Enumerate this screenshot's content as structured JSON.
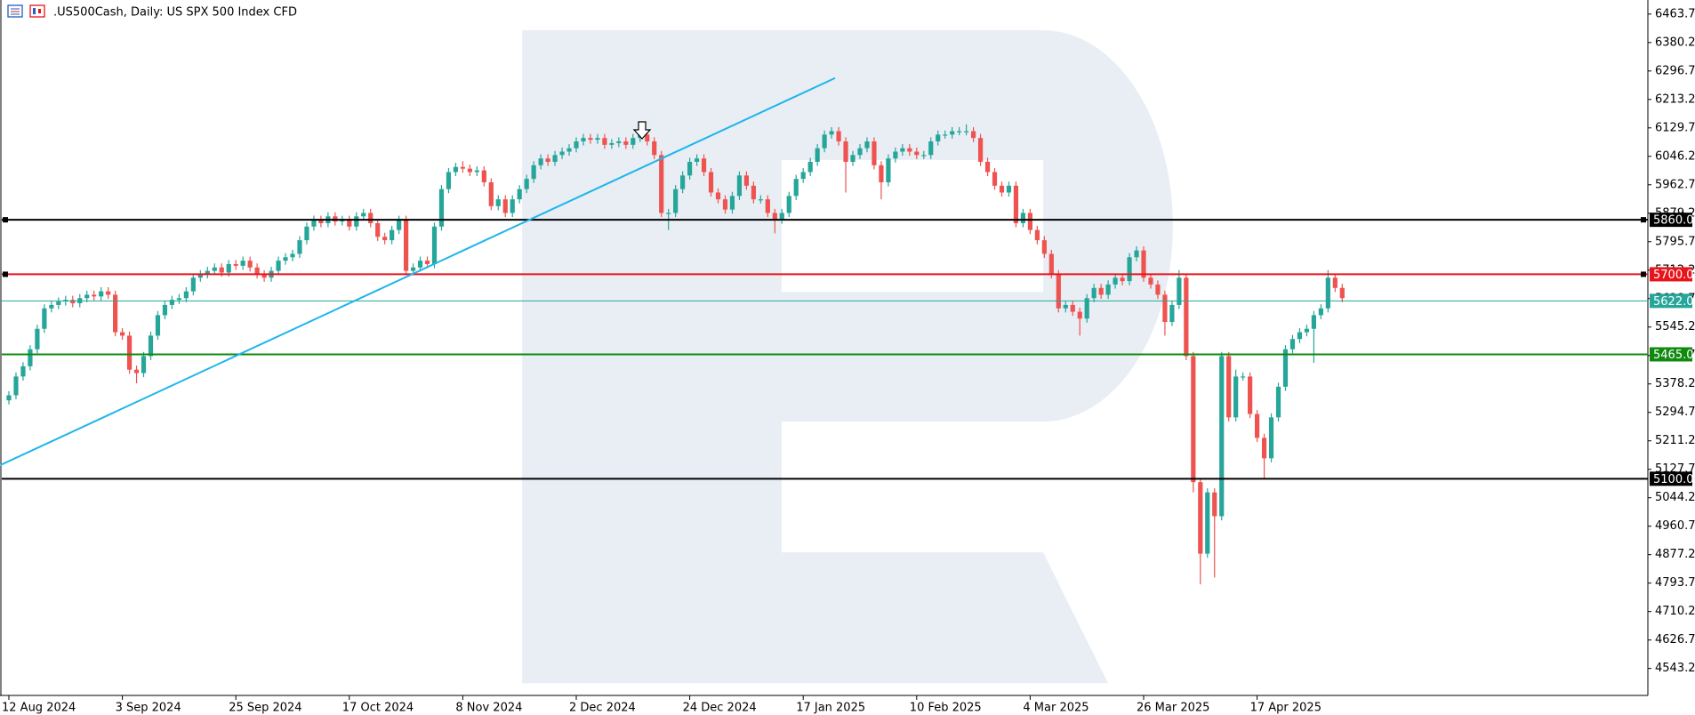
{
  "chart_data": {
    "type": "candlestick",
    "title": ".US500Cash, Daily:  US SPX 500 Index CFD",
    "up_color": "#26a69a",
    "down_color": "#ef5350",
    "categories": [
      "12 Aug 2024",
      null,
      null,
      null,
      null,
      null,
      null,
      null,
      null,
      null,
      null,
      null,
      null,
      null,
      null,
      null,
      "3 Sep 2024",
      null,
      null,
      null,
      null,
      null,
      null,
      null,
      null,
      null,
      null,
      null,
      null,
      null,
      null,
      null,
      "25 Sep 2024",
      null,
      null,
      null,
      null,
      null,
      null,
      null,
      null,
      null,
      null,
      null,
      null,
      null,
      null,
      null,
      "17 Oct 2024",
      null,
      null,
      null,
      null,
      null,
      null,
      null,
      null,
      null,
      null,
      null,
      null,
      null,
      null,
      null,
      "8 Nov 2024",
      null,
      null,
      null,
      null,
      null,
      null,
      null,
      null,
      null,
      null,
      null,
      null,
      null,
      null,
      null,
      "2 Dec 2024",
      null,
      null,
      null,
      null,
      null,
      null,
      null,
      null,
      null,
      null,
      null,
      null,
      null,
      null,
      null,
      "24 Dec 2024",
      null,
      null,
      null,
      null,
      null,
      null,
      null,
      null,
      null,
      null,
      null,
      null,
      null,
      null,
      null,
      "17 Jan 2025",
      null,
      null,
      null,
      null,
      null,
      null,
      null,
      null,
      null,
      null,
      null,
      null,
      null,
      null,
      null,
      "10 Feb 2025",
      null,
      null,
      null,
      null,
      null,
      null,
      null,
      null,
      null,
      null,
      null,
      null,
      null,
      null,
      null,
      "4 Mar 2025",
      null,
      null,
      null,
      null,
      null,
      null,
      null,
      null,
      null,
      null,
      null,
      null,
      null,
      null,
      null,
      "26 Mar 2025",
      null,
      null,
      null,
      null,
      null,
      null,
      null,
      null,
      null,
      null,
      null,
      null,
      null,
      null,
      null,
      "17 Apr 2025",
      null,
      null,
      null,
      null,
      null,
      null,
      null,
      null,
      null,
      null,
      null,
      null
    ],
    "open": [
      5330,
      5345,
      5400,
      5430,
      5480,
      5540,
      5600,
      5610,
      5620,
      5625,
      5615,
      5630,
      5640,
      5635,
      5650,
      5640,
      5530,
      5520,
      5420,
      5410,
      5460,
      5520,
      5580,
      5610,
      5625,
      5630,
      5650,
      5690,
      5700,
      5710,
      5720,
      5705,
      5730,
      5725,
      5740,
      5720,
      5700,
      5690,
      5710,
      5740,
      5750,
      5760,
      5800,
      5840,
      5860,
      5850,
      5870,
      5855,
      5860,
      5840,
      5870,
      5880,
      5850,
      5810,
      5800,
      5830,
      5860,
      5710,
      5720,
      5740,
      5730,
      5840,
      5950,
      6000,
      6015,
      6010,
      6000,
      6005,
      5970,
      5900,
      5920,
      5880,
      5920,
      5950,
      5980,
      6020,
      6040,
      6030,
      6050,
      6060,
      6070,
      6090,
      6100,
      6095,
      6100,
      6080,
      6085,
      6090,
      6080,
      6100,
      6110,
      6090,
      6050,
      5880,
      5880,
      5950,
      5990,
      6030,
      6040,
      6000,
      5940,
      5920,
      5890,
      5930,
      5990,
      5960,
      5920,
      5920,
      5880,
      5860,
      5880,
      5930,
      5980,
      6000,
      6030,
      6070,
      6110,
      6120,
      6090,
      6030,
      6050,
      6070,
      6090,
      6020,
      5970,
      6040,
      6060,
      6070,
      6060,
      6050,
      6050,
      6090,
      6110,
      6110,
      6120,
      6120,
      6120,
      6100,
      6030,
      6000,
      5960,
      5940,
      5960,
      5850,
      5880,
      5830,
      5800,
      5760,
      5700,
      5600,
      5610,
      5590,
      5570,
      5630,
      5660,
      5640,
      5670,
      5690,
      5680,
      5750,
      5770,
      5690,
      5670,
      5640,
      5560,
      5610,
      5690,
      5460,
      5090,
      4880,
      5060,
      4990,
      5460,
      5280,
      5400,
      5400,
      5290,
      5220,
      5160,
      5280,
      5370,
      5480,
      5510,
      5530,
      5540,
      5580,
      5600,
      5690,
      5660
    ],
    "high": [
      5357,
      5412,
      5442,
      5492,
      5552,
      5612,
      5622,
      5632,
      5637,
      5637,
      5642,
      5652,
      5652,
      5662,
      5662,
      5652,
      5542,
      5532,
      5432,
      5472,
      5532,
      5592,
      5622,
      5637,
      5642,
      5662,
      5702,
      5712,
      5722,
      5732,
      5732,
      5742,
      5742,
      5752,
      5752,
      5732,
      5712,
      5722,
      5752,
      5762,
      5772,
      5812,
      5852,
      5872,
      5872,
      5882,
      5882,
      5872,
      5872,
      5882,
      5892,
      5892,
      5862,
      5822,
      5842,
      5872,
      5872,
      5732,
      5752,
      5752,
      5852,
      5962,
      6012,
      6027,
      6032,
      6022,
      6017,
      6017,
      5982,
      5932,
      5932,
      5932,
      5962,
      5992,
      6032,
      6052,
      6052,
      6062,
      6072,
      6082,
      6102,
      6112,
      6112,
      6112,
      6112,
      6097,
      6102,
      6102,
      6112,
      6122,
      6122,
      6102,
      6062,
      5892,
      5962,
      6002,
      6042,
      6052,
      6052,
      6012,
      5952,
      5932,
      5942,
      6002,
      6002,
      5972,
      5932,
      5932,
      5892,
      5892,
      5942,
      5992,
      6012,
      6042,
      6082,
      6122,
      6132,
      6132,
      6102,
      6062,
      6082,
      6102,
      6102,
      6032,
      6052,
      6072,
      6082,
      6082,
      6072,
      6062,
      6102,
      6122,
      6122,
      6132,
      6132,
      6140,
      6132,
      6112,
      6042,
      6012,
      5972,
      5972,
      5972,
      5892,
      5892,
      5842,
      5812,
      5772,
      5712,
      5622,
      5622,
      5602,
      5642,
      5672,
      5672,
      5682,
      5702,
      5702,
      5762,
      5782,
      5782,
      5702,
      5682,
      5652,
      5622,
      5712,
      5702,
      5472,
      5102,
      5072,
      5072,
      5472,
      5472,
      5420,
      5412,
      5412,
      5302,
      5232,
      5292,
      5382,
      5492,
      5522,
      5542,
      5552,
      5592,
      5612,
      5712,
      5702,
      5672
    ],
    "low": [
      5318,
      5333,
      5388,
      5418,
      5468,
      5528,
      5588,
      5598,
      5608,
      5603,
      5603,
      5618,
      5623,
      5623,
      5628,
      5518,
      5508,
      5408,
      5380,
      5398,
      5448,
      5508,
      5568,
      5598,
      5613,
      5618,
      5638,
      5678,
      5688,
      5698,
      5693,
      5693,
      5713,
      5713,
      5708,
      5688,
      5678,
      5678,
      5698,
      5728,
      5738,
      5748,
      5788,
      5828,
      5838,
      5838,
      5843,
      5843,
      5828,
      5828,
      5858,
      5838,
      5798,
      5788,
      5788,
      5818,
      5698,
      5698,
      5708,
      5718,
      5718,
      5828,
      5938,
      5988,
      5998,
      5988,
      5988,
      5958,
      5888,
      5888,
      5868,
      5868,
      5908,
      5938,
      5968,
      6008,
      6018,
      6018,
      6038,
      6048,
      6058,
      6078,
      6083,
      6083,
      6068,
      6068,
      6073,
      6068,
      6068,
      6088,
      6078,
      6038,
      5868,
      5830,
      5868,
      5938,
      5978,
      6018,
      5988,
      5928,
      5908,
      5878,
      5878,
      5918,
      5948,
      5908,
      5908,
      5868,
      5820,
      5848,
      5868,
      5918,
      5968,
      5988,
      6018,
      6058,
      6098,
      6078,
      5940,
      6018,
      6038,
      6058,
      6008,
      5920,
      5958,
      6028,
      6048,
      6048,
      6038,
      6038,
      6038,
      6078,
      6098,
      6098,
      6108,
      6108,
      6088,
      6018,
      5988,
      5948,
      5928,
      5928,
      5838,
      5838,
      5818,
      5788,
      5748,
      5688,
      5588,
      5588,
      5578,
      5520,
      5558,
      5618,
      5628,
      5628,
      5658,
      5668,
      5668,
      5738,
      5678,
      5658,
      5628,
      5520,
      5548,
      5598,
      5448,
      5060,
      4790,
      4868,
      4810,
      4978,
      5268,
      5268,
      5388,
      5278,
      5208,
      5100,
      5148,
      5268,
      5358,
      5468,
      5498,
      5518,
      5440,
      5568,
      5588,
      5648,
      5618
    ],
    "close": [
      5345,
      5400,
      5430,
      5480,
      5540,
      5600,
      5610,
      5620,
      5625,
      5615,
      5630,
      5640,
      5635,
      5650,
      5640,
      5530,
      5520,
      5420,
      5410,
      5460,
      5520,
      5580,
      5610,
      5625,
      5630,
      5650,
      5690,
      5700,
      5710,
      5720,
      5705,
      5730,
      5725,
      5740,
      5720,
      5700,
      5690,
      5710,
      5740,
      5750,
      5760,
      5800,
      5840,
      5860,
      5850,
      5870,
      5855,
      5860,
      5840,
      5870,
      5880,
      5850,
      5810,
      5800,
      5830,
      5860,
      5710,
      5720,
      5740,
      5730,
      5840,
      5950,
      6000,
      6015,
      6010,
      6000,
      6005,
      5970,
      5900,
      5920,
      5880,
      5920,
      5950,
      5980,
      6020,
      6040,
      6030,
      6050,
      6060,
      6070,
      6090,
      6100,
      6095,
      6100,
      6080,
      6085,
      6090,
      6080,
      6100,
      6110,
      6090,
      6050,
      5880,
      5880,
      5950,
      5990,
      6030,
      6040,
      6000,
      5940,
      5920,
      5890,
      5930,
      5990,
      5960,
      5920,
      5920,
      5880,
      5860,
      5880,
      5930,
      5980,
      6000,
      6030,
      6070,
      6110,
      6120,
      6090,
      6030,
      6050,
      6070,
      6090,
      6020,
      5970,
      6040,
      6060,
      6070,
      6060,
      6050,
      6050,
      6090,
      6110,
      6110,
      6120,
      6120,
      6120,
      6100,
      6030,
      6000,
      5960,
      5940,
      5960,
      5850,
      5880,
      5830,
      5800,
      5760,
      5700,
      5600,
      5610,
      5590,
      5570,
      5630,
      5660,
      5640,
      5670,
      5690,
      5680,
      5750,
      5770,
      5690,
      5670,
      5640,
      5560,
      5610,
      5690,
      5460,
      5090,
      4880,
      5060,
      4990,
      5460,
      5280,
      5400,
      5400,
      5290,
      5220,
      5160,
      5280,
      5370,
      5480,
      5510,
      5530,
      5540,
      5580,
      5600,
      5690,
      5660,
      5630
    ],
    "ylim": [
      4464,
      6505
    ],
    "yticks": [
      6463.7,
      6380.2,
      6296.7,
      6213.2,
      6129.7,
      6046.2,
      5962.7,
      5879.2,
      5795.7,
      5712.2,
      5628.7,
      5545.2,
      5461.7,
      5378.2,
      5294.7,
      5211.2,
      5127.7,
      5044.2,
      4960.7,
      4877.2,
      4793.7,
      4710.2,
      4626.7,
      4543.2
    ],
    "levels": [
      {
        "value": 5860,
        "label": "5860.0",
        "color": "#000000"
      },
      {
        "value": 5700,
        "label": "5700.0",
        "color": "#e8141c"
      },
      {
        "value": 5622,
        "label": "5622.0",
        "color": "#26a69a"
      },
      {
        "value": 5465,
        "label": "5465.0",
        "color": "#0f8a0f"
      },
      {
        "value": 5100,
        "label": "5100.0",
        "color": "#000000"
      }
    ],
    "trendline": {
      "color": "#1eb5ec",
      "x": [
        -1.2,
        116.5
      ],
      "y": [
        5140,
        6276
      ]
    }
  }
}
